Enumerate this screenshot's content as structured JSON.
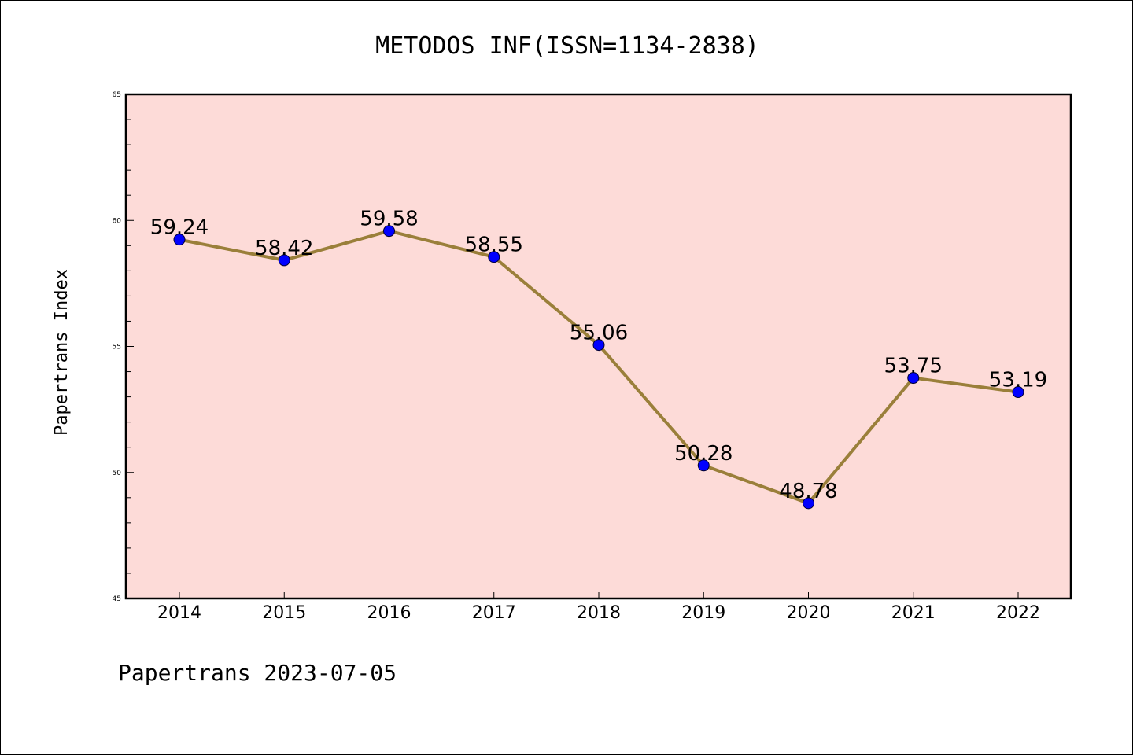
{
  "chart_data": {
    "type": "line",
    "title": "METODOS INF(ISSN=1134-2838)",
    "xlabel": "",
    "ylabel": "Papertrans Index",
    "footer": "Papertrans 2023-07-05",
    "categories": [
      "2014",
      "2015",
      "2016",
      "2017",
      "2018",
      "2019",
      "2020",
      "2021",
      "2022"
    ],
    "series": [
      {
        "values": [
          59.24,
          58.42,
          59.58,
          58.55,
          55.06,
          50.28,
          48.78,
          53.75,
          53.19
        ],
        "data_labels": [
          "59.24",
          "58.42",
          "59.58",
          "58.55",
          "55.06",
          "50.28",
          "48.78",
          "53.75",
          "53.19"
        ]
      }
    ],
    "ylim": [
      45,
      65
    ],
    "yticks": [
      "45",
      "50",
      "55",
      "60",
      "65"
    ],
    "grid": false,
    "legend": "none",
    "colors": {
      "plot_background": "#fddbd8",
      "line": "#9a7f3a",
      "marker": "#0000ff",
      "axes": "#000000"
    }
  }
}
